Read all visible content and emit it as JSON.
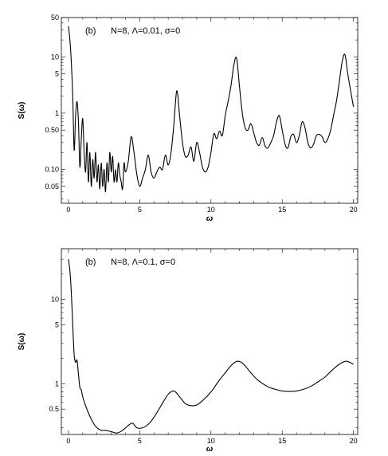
{
  "chart_data": [
    {
      "type": "line",
      "panel_tag": "(b)",
      "annotation": "N=8, Λ=0.01, σ=0",
      "xlabel": "ω",
      "ylabel": "S(ω)",
      "xlim": [
        -0.5,
        20.3
      ],
      "ylim": [
        0.025,
        50
      ],
      "yscale": "log",
      "xticks": [
        0,
        5,
        10,
        15,
        20
      ],
      "yticks": [
        0.05,
        0.1,
        0.5,
        1,
        5,
        10,
        50
      ],
      "ytick_labels": [
        "0.05",
        "0.10",
        "0.50",
        "1",
        "5",
        "10",
        "50"
      ],
      "series": [
        {
          "x": [
            0.0,
            0.1,
            0.2,
            0.3,
            0.4,
            0.5,
            0.6,
            0.7,
            0.8,
            0.9,
            1.0,
            1.1,
            1.2,
            1.3,
            1.4,
            1.5,
            1.6,
            1.7,
            1.8,
            1.9,
            2.0,
            2.1,
            2.2,
            2.3,
            2.4,
            2.5,
            2.6,
            2.7,
            2.8,
            2.9,
            3.0,
            3.1,
            3.2,
            3.3,
            3.4,
            3.5,
            3.6,
            3.7,
            3.8,
            3.9,
            4.0,
            4.2,
            4.4,
            4.6,
            4.8,
            5.0,
            5.2,
            5.4,
            5.6,
            5.8,
            6.0,
            6.2,
            6.4,
            6.6,
            6.8,
            7.0,
            7.2,
            7.4,
            7.6,
            7.8,
            8.0,
            8.2,
            8.4,
            8.6,
            8.8,
            9.0,
            9.2,
            9.4,
            9.6,
            9.8,
            10.0,
            10.2,
            10.4,
            10.6,
            10.8,
            11.0,
            11.2,
            11.4,
            11.6,
            11.8,
            12.0,
            12.2,
            12.4,
            12.6,
            12.8,
            13.0,
            13.2,
            13.4,
            13.6,
            13.8,
            14.0,
            14.2,
            14.4,
            14.6,
            14.8,
            15.0,
            15.2,
            15.4,
            15.6,
            15.8,
            16.0,
            16.2,
            16.4,
            16.6,
            16.8,
            17.0,
            17.2,
            17.4,
            17.6,
            17.8,
            18.0,
            18.2,
            18.4,
            18.6,
            18.8,
            19.0,
            19.2,
            19.4,
            19.6,
            19.8,
            20.0
          ],
          "y": [
            35,
            20,
            8,
            2.0,
            0.22,
            0.9,
            1.6,
            0.7,
            0.11,
            0.35,
            0.8,
            0.2,
            0.09,
            0.3,
            0.06,
            0.2,
            0.05,
            0.15,
            0.07,
            0.2,
            0.06,
            0.12,
            0.045,
            0.13,
            0.05,
            0.1,
            0.04,
            0.13,
            0.06,
            0.2,
            0.09,
            0.17,
            0.06,
            0.1,
            0.06,
            0.13,
            0.08,
            0.06,
            0.045,
            0.13,
            0.09,
            0.14,
            0.38,
            0.2,
            0.08,
            0.05,
            0.07,
            0.1,
            0.18,
            0.09,
            0.07,
            0.09,
            0.11,
            0.1,
            0.18,
            0.12,
            0.2,
            0.65,
            2.5,
            0.9,
            0.3,
            0.17,
            0.18,
            0.25,
            0.14,
            0.3,
            0.2,
            0.11,
            0.09,
            0.11,
            0.2,
            0.43,
            0.35,
            0.48,
            0.4,
            0.9,
            1.6,
            3.0,
            7.0,
            9.5,
            3.0,
            1.0,
            0.55,
            0.5,
            0.65,
            0.45,
            0.3,
            0.27,
            0.37,
            0.26,
            0.24,
            0.3,
            0.4,
            0.7,
            0.9,
            0.5,
            0.28,
            0.24,
            0.38,
            0.42,
            0.3,
            0.4,
            0.7,
            0.55,
            0.3,
            0.24,
            0.28,
            0.4,
            0.42,
            0.38,
            0.3,
            0.35,
            0.5,
            0.9,
            1.6,
            3.5,
            8.0,
            11.0,
            5.0,
            2.5,
            1.3
          ]
        }
      ]
    },
    {
      "type": "line",
      "panel_tag": "(b)",
      "annotation": "N=8, Λ=0.1, σ=0",
      "xlabel": "ω",
      "ylabel": "S(ω)",
      "xlim": [
        -0.5,
        20.3
      ],
      "ylim": [
        0.25,
        40
      ],
      "yscale": "log",
      "xticks": [
        0,
        5,
        10,
        15,
        20
      ],
      "yticks": [
        0.5,
        1,
        5,
        10
      ],
      "ytick_labels": [
        "0.5",
        "1",
        "5",
        "10"
      ],
      "series": [
        {
          "x": [
            0.0,
            0.1,
            0.2,
            0.3,
            0.4,
            0.5,
            0.6,
            0.7,
            0.8,
            0.9,
            1.0,
            1.2,
            1.4,
            1.6,
            1.8,
            2.0,
            2.3,
            2.6,
            3.0,
            3.4,
            3.8,
            4.2,
            4.5,
            4.8,
            5.2,
            5.6,
            6.0,
            6.5,
            7.0,
            7.4,
            7.8,
            8.2,
            8.6,
            9.0,
            9.5,
            10.0,
            10.5,
            11.0,
            11.5,
            11.9,
            12.3,
            12.8,
            13.3,
            14.0,
            14.5,
            15.0,
            15.5,
            16.0,
            16.5,
            17.0,
            17.5,
            18.0,
            18.5,
            19.0,
            19.5,
            20.0
          ],
          "y": [
            30,
            22,
            12,
            5,
            2.2,
            1.8,
            1.9,
            1.3,
            0.9,
            0.85,
            0.7,
            0.55,
            0.45,
            0.38,
            0.33,
            0.3,
            0.28,
            0.28,
            0.27,
            0.26,
            0.28,
            0.32,
            0.34,
            0.3,
            0.3,
            0.33,
            0.4,
            0.55,
            0.75,
            0.82,
            0.7,
            0.58,
            0.55,
            0.56,
            0.65,
            0.8,
            1.05,
            1.35,
            1.7,
            1.85,
            1.7,
            1.35,
            1.1,
            0.92,
            0.86,
            0.82,
            0.81,
            0.82,
            0.86,
            0.93,
            1.05,
            1.2,
            1.45,
            1.7,
            1.85,
            1.7
          ]
        }
      ]
    }
  ]
}
